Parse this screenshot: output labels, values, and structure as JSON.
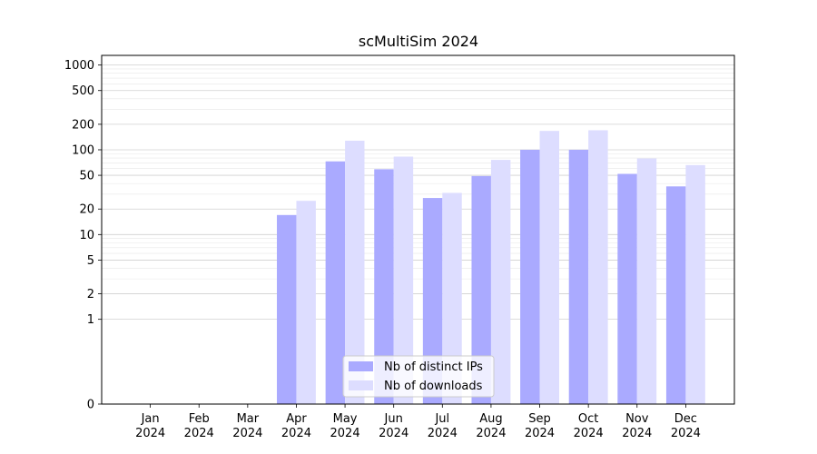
{
  "chart_data": {
    "type": "bar",
    "title": "scMultiSim 2024",
    "xlabel": "",
    "ylabel": "",
    "yscale": "symlog",
    "ylim": [
      0,
      1300
    ],
    "y_ticks": [
      0,
      1,
      2,
      5,
      10,
      20,
      50,
      100,
      200,
      500,
      1000
    ],
    "y_tick_labels": [
      "0",
      "1",
      "2",
      "5",
      "10",
      "20",
      "50",
      "100",
      "200",
      "500",
      "1000"
    ],
    "categories": [
      [
        "Jan",
        "2024"
      ],
      [
        "Feb",
        "2024"
      ],
      [
        "Mar",
        "2024"
      ],
      [
        "Apr",
        "2024"
      ],
      [
        "May",
        "2024"
      ],
      [
        "Jun",
        "2024"
      ],
      [
        "Jul",
        "2024"
      ],
      [
        "Aug",
        "2024"
      ],
      [
        "Sep",
        "2024"
      ],
      [
        "Oct",
        "2024"
      ],
      [
        "Nov",
        "2024"
      ],
      [
        "Dec",
        "2024"
      ]
    ],
    "series": [
      {
        "name": "Nb of distinct IPs",
        "color": "#aaaaff",
        "values": [
          0,
          0,
          0,
          17,
          73,
          59,
          27,
          49,
          100,
          100,
          52,
          37
        ]
      },
      {
        "name": "Nb of downloads",
        "color": "#ddddff",
        "values": [
          0,
          0,
          0,
          25,
          128,
          83,
          31,
          76,
          167,
          170,
          79,
          66
        ]
      }
    ],
    "grid": true,
    "legend_position": "lower-center"
  }
}
